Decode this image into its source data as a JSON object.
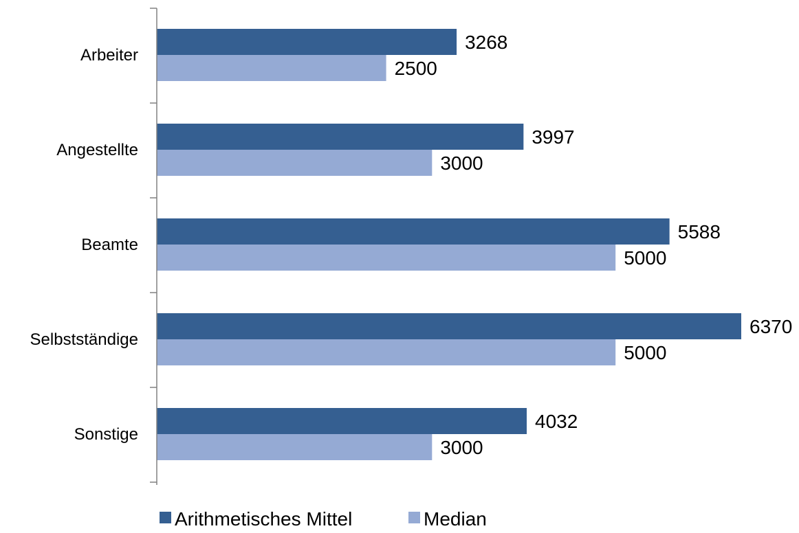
{
  "chart_data": {
    "type": "bar",
    "orientation": "horizontal",
    "categories": [
      "Arbeiter",
      "Angestellte",
      "Beamte",
      "Selbstständige",
      "Sonstige"
    ],
    "series": [
      {
        "name": "Arithmetisches Mittel",
        "values": [
          3268,
          3997,
          5588,
          6370,
          4032
        ],
        "color": "#355f91"
      },
      {
        "name": "Median",
        "values": [
          2500,
          3000,
          5000,
          5000,
          3000
        ],
        "color": "#95aad4"
      }
    ],
    "xlim": [
      0,
      6370
    ],
    "grid": false,
    "legend": "bottom"
  }
}
